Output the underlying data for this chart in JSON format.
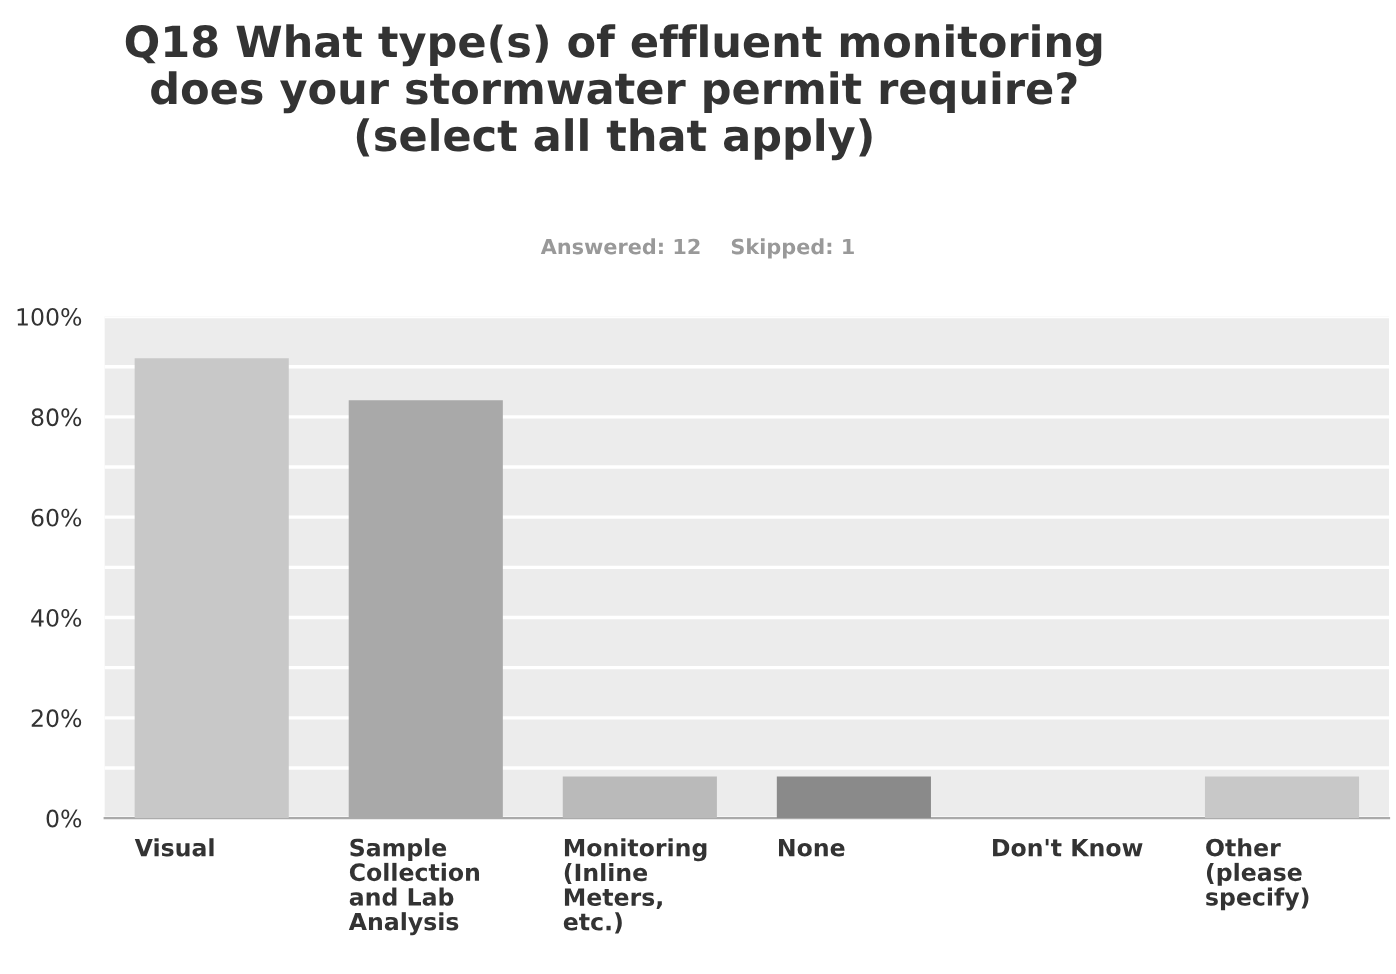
{
  "chart_data": {
    "type": "bar",
    "title": "Q18 What type(s) of effluent monitoring\ndoes your stormwater permit require?\n(select all that apply)",
    "subtitle": "Answered: 12    Skipped: 1",
    "categories": [
      "Visual",
      "Sample\nCollection\nand Lab\nAnalysis",
      "Monitoring\n(Inline\nMeters,\netc.)",
      "None",
      "Don't Know",
      "Other\n(please\nspecify)"
    ],
    "values": [
      91.7,
      83.3,
      8.3,
      8.3,
      0,
      8.3
    ],
    "colors": [
      "#c8c8c8",
      "#a9a9a9",
      "#bababa",
      "#8a8a8a",
      "#c8c8c8",
      "#c8c8c8"
    ],
    "ylim": [
      0,
      100
    ],
    "yticks": [
      {
        "value": 0,
        "label": "0%"
      },
      {
        "value": 10,
        "label": null
      },
      {
        "value": 20,
        "label": "20%"
      },
      {
        "value": 30,
        "label": null
      },
      {
        "value": 40,
        "label": "40%"
      },
      {
        "value": 50,
        "label": null
      },
      {
        "value": 60,
        "label": "60%"
      },
      {
        "value": 70,
        "label": null
      },
      {
        "value": 80,
        "label": "80%"
      },
      {
        "value": 90,
        "label": null
      },
      {
        "value": 100,
        "label": "100%"
      }
    ],
    "grid": "y",
    "legend": false
  }
}
